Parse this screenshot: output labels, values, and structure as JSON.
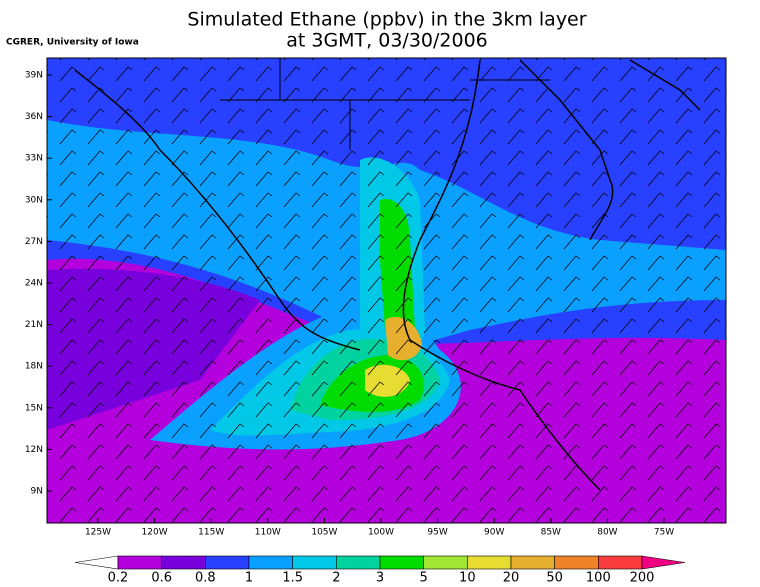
{
  "header": {
    "title_line1": "Simulated Ethane (ppbv) in the 3km layer",
    "title_line2": "at 3GMT, 03/30/2006",
    "credit": "CGRER, University of Iowa"
  },
  "map": {
    "lat_labels": [
      "39N",
      "36N",
      "33N",
      "30N",
      "27N",
      "24N",
      "21N",
      "18N",
      "15N",
      "12N",
      "9N"
    ],
    "lon_labels": [
      "125W",
      "120W",
      "115W",
      "110W",
      "105W",
      "100W",
      "95W",
      "90W",
      "85W",
      "80W",
      "75W"
    ]
  },
  "colorbar": {
    "levels": [
      0.2,
      0.6,
      0.8,
      1,
      1.5,
      2,
      3,
      5,
      10,
      20,
      50,
      100,
      200
    ],
    "colors": [
      "#b400dc",
      "#7800dc",
      "#2840ff",
      "#0aa0ff",
      "#00c8e6",
      "#00d2a0",
      "#00dc00",
      "#a0e632",
      "#e6dc32",
      "#e6af2d",
      "#f08228",
      "#fa3c3c"
    ],
    "under_color": "#ffffff",
    "over_color": "#f00082"
  }
}
